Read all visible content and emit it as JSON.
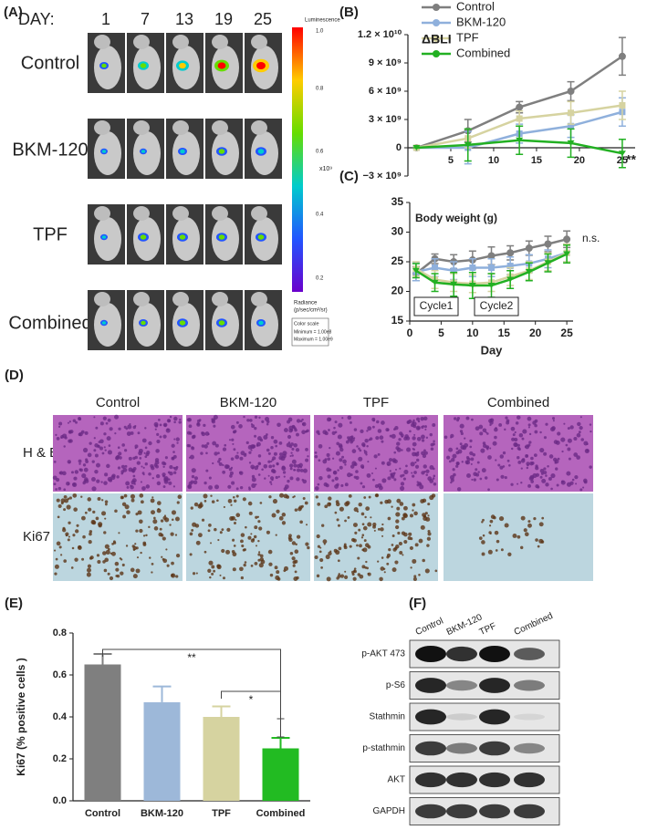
{
  "imaging": {
    "panel_label": "(A)",
    "day_label": "DAY:",
    "days": [
      1,
      7,
      13,
      19,
      25
    ],
    "groups": [
      "Control",
      "BKM-120",
      "TPF",
      "Combined"
    ],
    "colorbar": {
      "title": "Luminescence",
      "ticks": [
        "1.0",
        "0.8",
        "0.6",
        "0.4",
        "0.2"
      ],
      "multiplier": "x10⁹",
      "unit_label": "Radiance",
      "unit": "(p/sec/cm²/sr)",
      "scale_title": "Color scale",
      "minimum": "Minimum = 1.00e8",
      "maximum": "Maximum = 1.00e9"
    }
  },
  "chart_data": [
    {
      "type": "line",
      "panel_label": "(B)",
      "title": "ΔBLI",
      "annotations": [
        "**"
      ],
      "x": [
        1,
        7,
        13,
        19,
        25
      ],
      "xlim": [
        0,
        26.5
      ],
      "xticks": [
        5,
        10,
        15,
        20,
        25
      ],
      "ylim": [
        -3000000000,
        12000000000
      ],
      "yticks": [
        {
          "value": -3000000000,
          "label": "−3 × 10⁹"
        },
        0,
        {
          "value": 3000000000,
          "label": "3 × 10⁹"
        },
        {
          "value": 6000000000,
          "label": "6 × 10⁹"
        },
        {
          "value": 9000000000,
          "label": "9 × 10⁹"
        },
        {
          "value": 12000000000,
          "label": "1.2 × 10¹⁰"
        }
      ],
      "legend": "top",
      "series": [
        {
          "name": "Control",
          "color": "#7f7f7f",
          "values": [
            0,
            1800000000,
            4300000000,
            6000000000,
            9700000000
          ],
          "errors": [
            0,
            1200000000,
            600000000,
            1000000000,
            2000000000
          ]
        },
        {
          "name": "BKM-120",
          "color": "#8fb0dc",
          "values": [
            0,
            0,
            1500000000,
            2300000000,
            3800000000
          ],
          "errors": [
            0,
            1700000000,
            1000000000,
            1200000000,
            1500000000
          ]
        },
        {
          "name": "TPF",
          "color": "#d6d3a0",
          "values": [
            0,
            1000000000,
            3100000000,
            3700000000,
            4500000000
          ],
          "errors": [
            0,
            1000000000,
            800000000,
            1200000000,
            1500000000
          ]
        },
        {
          "name": "Combined",
          "color": "#22b022",
          "values": [
            0,
            300000000,
            800000000,
            500000000,
            -600000000
          ],
          "errors": [
            0,
            1700000000,
            1500000000,
            1500000000,
            1500000000
          ]
        }
      ]
    },
    {
      "type": "line",
      "panel_label": "(C)",
      "title": "Body weight (g)",
      "x_label": "Day",
      "annotations": [
        "n.s."
      ],
      "cycles": [
        "Cycle1",
        "Cycle2"
      ],
      "x": [
        1,
        4,
        7,
        10,
        13,
        16,
        19,
        22,
        25
      ],
      "xlim": [
        0,
        26
      ],
      "xticks": [
        0,
        5,
        10,
        15,
        20,
        25
      ],
      "ylim": [
        15,
        35
      ],
      "yticks": [
        15,
        20,
        25,
        30,
        35
      ],
      "series": [
        {
          "name": "Control",
          "color": "#7f7f7f",
          "values": [
            23,
            25.5,
            25,
            25.3,
            26,
            26.5,
            27.3,
            28,
            28.8
          ],
          "errors": [
            1.2,
            0.8,
            1.2,
            1.5,
            1.5,
            1.2,
            1.2,
            1.3,
            1.4
          ]
        },
        {
          "name": "BKM-120",
          "color": "#8fb0dc",
          "values": [
            23.3,
            24,
            23.5,
            24,
            24,
            24.3,
            24.7,
            25.5,
            26.5
          ],
          "errors": [
            1.5,
            1.5,
            1.5,
            1.5,
            1.5,
            1.5,
            1.5,
            1.5,
            1.5
          ]
        },
        {
          "name": "TPF",
          "color": "#d6d3a0",
          "values": [
            23.8,
            22,
            21.5,
            21.3,
            21.5,
            22.5,
            23.5,
            25,
            26.5
          ],
          "errors": [
            1.2,
            1.5,
            1.5,
            1.5,
            1.5,
            1.5,
            1.5,
            1.5,
            1.5
          ]
        },
        {
          "name": "Combined",
          "color": "#22b022",
          "values": [
            23.5,
            21.5,
            21.2,
            21,
            21,
            22,
            23.3,
            24.8,
            26.3
          ],
          "errors": [
            1.2,
            1.5,
            2,
            2.2,
            2,
            1.5,
            1.5,
            1.5,
            1.5
          ]
        }
      ]
    },
    {
      "type": "bar",
      "panel_label": "(E)",
      "y_label": "Ki67 (% positive cells )",
      "annotations": [
        "**",
        "*"
      ],
      "categories": [
        "Control",
        "BKM-120",
        "TPF",
        "Combined"
      ],
      "values": [
        0.65,
        0.47,
        0.4,
        0.25
      ],
      "errors": [
        0.05,
        0.075,
        0.05,
        0.05
      ],
      "colors": [
        "#7f7f7f",
        "#9db8d9",
        "#d6d3a0",
        "#22bb22"
      ],
      "ylim": [
        0,
        0.8
      ],
      "yticks": [
        {
          "value": 0,
          "label": "0.0"
        },
        {
          "value": 0.2,
          "label": "0.2"
        },
        {
          "value": 0.4,
          "label": "0.4"
        },
        {
          "value": 0.6,
          "label": "0.6"
        },
        {
          "value": 0.8,
          "label": "0.8"
        }
      ]
    }
  ],
  "histology": {
    "panel_label": "(D)",
    "columns": [
      "Control",
      "BKM-120",
      "TPF",
      "Combined"
    ],
    "rows": [
      "H & E",
      "Ki67"
    ]
  },
  "western": {
    "panel_label": "(F)",
    "columns": [
      "Control",
      "BKM-120",
      "TPF",
      "Combined"
    ],
    "rows": [
      "p-AKT 473",
      "p-S6",
      "Stathmin",
      "p-stathmin",
      "AKT",
      "GAPDH"
    ]
  }
}
